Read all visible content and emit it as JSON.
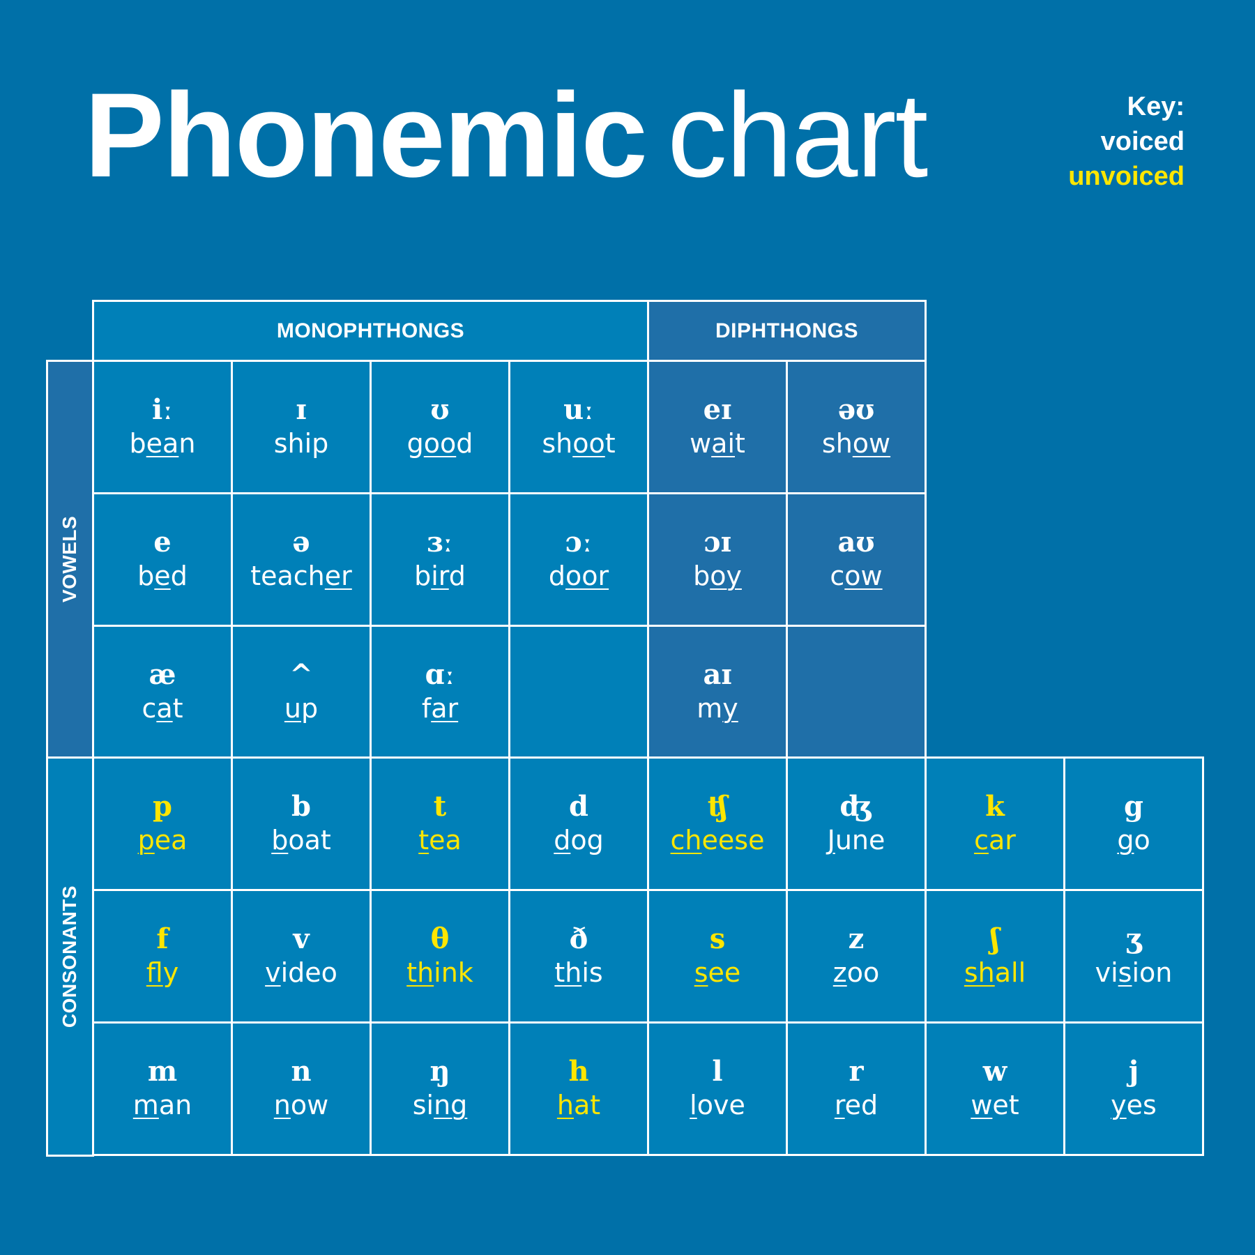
{
  "title": {
    "bold": "Phonemic",
    "light": "chart"
  },
  "key": {
    "label": "Key:",
    "voiced": "voiced",
    "unvoiced": "unvoiced",
    "voiced_color": "#ffffff",
    "unvoiced_color": "#ffe600"
  },
  "headers": {
    "monophthongs": "MONOPHTHONGS",
    "diphthongs": "DIPHTHONGS",
    "vowels": "VOWELS",
    "consonants": "CONSONANTS"
  },
  "colors": {
    "background": "#0070a8",
    "monophthong_cell": "#0080b8",
    "diphthong_cell": "#1f6fa8",
    "consonant_cell": "#0080b8",
    "unvoiced_text": "#ffe600"
  },
  "vowels": [
    [
      {
        "symbol": "iː",
        "pre": "b",
        "under": "ea",
        "post": "n",
        "group": "mono"
      },
      {
        "symbol": "ɪ",
        "pre": "shi",
        "under": "",
        "post": "p",
        "group": "mono"
      },
      {
        "symbol": "ʊ",
        "pre": "g",
        "under": "oo",
        "post": "d",
        "group": "mono"
      },
      {
        "symbol": "uː",
        "pre": "sh",
        "under": "oo",
        "post": "t",
        "group": "mono"
      },
      {
        "symbol": "eɪ",
        "pre": "w",
        "under": "ai",
        "post": "t",
        "group": "diph"
      },
      {
        "symbol": "əʊ",
        "pre": "sh",
        "under": "ow",
        "post": "",
        "group": "diph"
      }
    ],
    [
      {
        "symbol": "e",
        "pre": "b",
        "under": "e",
        "post": "d",
        "group": "mono"
      },
      {
        "symbol": "ə",
        "pre": "teach",
        "under": "er",
        "post": "",
        "group": "mono"
      },
      {
        "symbol": "ɜː",
        "pre": "b",
        "under": "ir",
        "post": "d",
        "group": "mono"
      },
      {
        "symbol": "ɔː",
        "pre": "d",
        "under": "oor",
        "post": "",
        "group": "mono"
      },
      {
        "symbol": "ɔɪ",
        "pre": "b",
        "under": "oy",
        "post": "",
        "group": "diph"
      },
      {
        "symbol": "aʊ",
        "pre": "c",
        "under": "ow",
        "post": "",
        "group": "diph"
      }
    ],
    [
      {
        "symbol": "æ",
        "pre": "c",
        "under": "a",
        "post": "t",
        "group": "mono"
      },
      {
        "symbol": "^",
        "pre": "",
        "under": "u",
        "post": "p",
        "group": "mono"
      },
      {
        "symbol": "ɑː",
        "pre": "f",
        "under": "ar",
        "post": "",
        "group": "mono"
      },
      {
        "symbol": "",
        "pre": "",
        "under": "",
        "post": "",
        "group": "mono"
      },
      {
        "symbol": "aɪ",
        "pre": "m",
        "under": "y",
        "post": "",
        "group": "diph"
      },
      {
        "symbol": "",
        "pre": "",
        "under": "",
        "post": "",
        "group": "diph"
      }
    ]
  ],
  "consonants": [
    [
      {
        "symbol": "p",
        "pre": "",
        "under": "p",
        "post": "ea",
        "unvoiced": true
      },
      {
        "symbol": "b",
        "pre": "",
        "under": "b",
        "post": "oat",
        "unvoiced": false
      },
      {
        "symbol": "t",
        "pre": "",
        "under": "t",
        "post": "ea",
        "unvoiced": true
      },
      {
        "symbol": "d",
        "pre": "",
        "under": "d",
        "post": "og",
        "unvoiced": false
      },
      {
        "symbol": "ʧ",
        "pre": "",
        "under": "ch",
        "post": "eese",
        "unvoiced": true
      },
      {
        "symbol": "ʤ",
        "pre": "",
        "under": "J",
        "post": "une",
        "unvoiced": false
      },
      {
        "symbol": "k",
        "pre": "",
        "under": "c",
        "post": "ar",
        "unvoiced": true
      },
      {
        "symbol": "g",
        "pre": "",
        "under": "g",
        "post": "o",
        "unvoiced": false
      }
    ],
    [
      {
        "symbol": "f",
        "pre": "",
        "under": "f",
        "post": "ly",
        "unvoiced": true
      },
      {
        "symbol": "v",
        "pre": "",
        "under": "v",
        "post": "ideo",
        "unvoiced": false
      },
      {
        "symbol": "θ",
        "pre": "",
        "under": "th",
        "post": "ink",
        "unvoiced": true
      },
      {
        "symbol": "ð",
        "pre": "",
        "under": "th",
        "post": "is",
        "unvoiced": false
      },
      {
        "symbol": "s",
        "pre": "",
        "under": "s",
        "post": "ee",
        "unvoiced": true
      },
      {
        "symbol": "z",
        "pre": "",
        "under": "z",
        "post": "oo",
        "unvoiced": false
      },
      {
        "symbol": "ʃ",
        "pre": "",
        "under": "sh",
        "post": "all",
        "unvoiced": true
      },
      {
        "symbol": "ʒ",
        "pre": "vi",
        "under": "s",
        "post": "ion",
        "unvoiced": false
      }
    ],
    [
      {
        "symbol": "m",
        "pre": "",
        "under": "m",
        "post": "an",
        "unvoiced": false
      },
      {
        "symbol": "n",
        "pre": "",
        "under": "n",
        "post": "ow",
        "unvoiced": false
      },
      {
        "symbol": "ŋ",
        "pre": "si",
        "under": "ng",
        "post": "",
        "unvoiced": false
      },
      {
        "symbol": "h",
        "pre": "",
        "under": "h",
        "post": "at",
        "unvoiced": true
      },
      {
        "symbol": "l",
        "pre": "",
        "under": "l",
        "post": "ove",
        "unvoiced": false
      },
      {
        "symbol": "r",
        "pre": "",
        "under": "r",
        "post": "ed",
        "unvoiced": false
      },
      {
        "symbol": "w",
        "pre": "",
        "under": "w",
        "post": "et",
        "unvoiced": false
      },
      {
        "symbol": "j",
        "pre": "",
        "under": "y",
        "post": "es",
        "unvoiced": false
      }
    ]
  ]
}
